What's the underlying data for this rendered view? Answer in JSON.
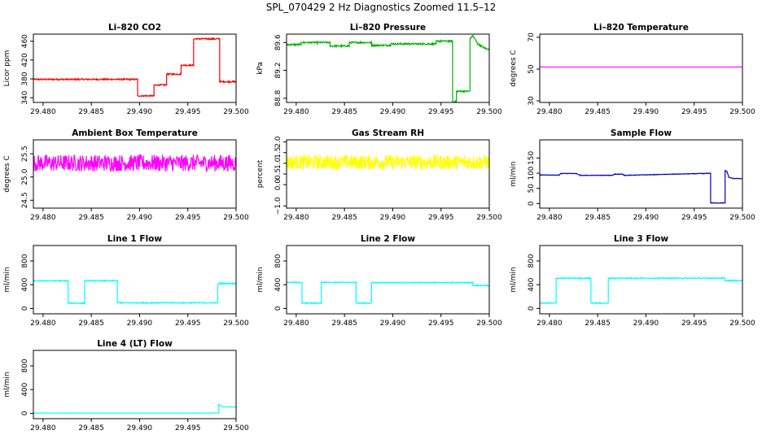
{
  "figure": {
    "title": "SPL_070429  2 Hz Diagnostics Zoomed 11.5–12"
  },
  "chart_data": [
    {
      "type": "line",
      "title": "Li–820 CO2",
      "ylabel": "Licor ppm",
      "color": "#ff0000",
      "xlim": [
        29.479,
        29.5
      ],
      "ylim": [
        330,
        475
      ],
      "xticks": [
        "29.480",
        "29.485",
        "29.490",
        "29.495",
        "29.500"
      ],
      "yticks": [
        340,
        380,
        420,
        460
      ],
      "noise": 1.5,
      "x": [
        29.479,
        29.4898,
        29.4898,
        29.4915,
        29.4915,
        29.4928,
        29.4928,
        29.4943,
        29.4943,
        29.4956,
        29.4956,
        29.4983,
        29.4983,
        29.5
      ],
      "y": [
        379,
        379,
        344,
        344,
        367,
        367,
        390,
        390,
        409,
        409,
        465,
        465,
        374,
        374
      ]
    },
    {
      "type": "line",
      "title": "Li–820 Pressure",
      "ylabel": "kPa",
      "color": "#00b400",
      "xlim": [
        29.479,
        29.5
      ],
      "ylim": [
        88.74,
        89.72
      ],
      "xticks": [
        "29.480",
        "29.485",
        "29.490",
        "29.495",
        "29.500"
      ],
      "yticks": [
        "88.8",
        "89.2",
        "89.6"
      ],
      "noise": 0.012,
      "x": [
        29.479,
        29.4805,
        29.4805,
        29.4835,
        29.4835,
        29.4855,
        29.4855,
        29.4878,
        29.4878,
        29.4898,
        29.4898,
        29.4945,
        29.4945,
        29.4962,
        29.4962,
        29.4966,
        29.4966,
        29.498,
        29.498,
        29.4983,
        29.4988,
        29.4995,
        29.5
      ],
      "y": [
        89.57,
        89.57,
        89.6,
        89.6,
        89.55,
        89.55,
        89.6,
        89.6,
        89.56,
        89.56,
        89.58,
        89.58,
        89.62,
        89.62,
        88.75,
        88.75,
        88.9,
        88.9,
        89.65,
        89.7,
        89.58,
        89.52,
        89.5
      ]
    },
    {
      "type": "line",
      "title": "Li–820 Temperature",
      "ylabel": "degrees C",
      "color": "#ff00ff",
      "xlim": [
        29.479,
        29.5
      ],
      "ylim": [
        29,
        72
      ],
      "xticks": [
        "29.480",
        "29.485",
        "29.490",
        "29.495",
        "29.500"
      ],
      "yticks": [
        30,
        50,
        70
      ],
      "noise": 0,
      "x": [
        29.479,
        29.5
      ],
      "y": [
        51.3,
        51.3
      ]
    },
    {
      "type": "line",
      "title": "Ambient Box Temperature",
      "ylabel": "degrees C",
      "color": "#ff00ff",
      "xlim": [
        29.479,
        29.5
      ],
      "ylim": [
        24.33,
        25.8
      ],
      "xticks": [
        "29.480",
        "29.485",
        "29.490",
        "29.495",
        "29.500"
      ],
      "yticks": [
        "24.5",
        "25.0",
        "25.5"
      ],
      "noise": 0.18,
      "x": [
        29.479,
        29.5
      ],
      "y": [
        25.3,
        25.3
      ]
    },
    {
      "type": "line",
      "title": "Gas Stream RH",
      "ylabel": "percent",
      "color": "#ffff00",
      "xlim": [
        29.479,
        29.5
      ],
      "ylim": [
        -1.1,
        2.1
      ],
      "xticks": [
        "29.480",
        "29.485",
        "29.490",
        "29.495",
        "29.500"
      ],
      "yticks": [
        "−1.0",
        "0.0",
        "0.5",
        "1.0",
        "1.5",
        "2.0"
      ],
      "noise": 0.35,
      "x": [
        29.479,
        29.5
      ],
      "y": [
        1.05,
        1.05
      ]
    },
    {
      "type": "line",
      "title": "Sample Flow",
      "ylabel": "ml/min",
      "color": "#0000c8",
      "xlim": [
        29.479,
        29.5
      ],
      "ylim": [
        -15,
        210
      ],
      "xticks": [
        "29.480",
        "29.485",
        "29.490",
        "29.495",
        "29.500"
      ],
      "yticks": [
        0,
        50,
        100,
        150
      ],
      "noise": 0.8,
      "x": [
        29.479,
        29.481,
        29.4812,
        29.4828,
        29.4832,
        29.4865,
        29.4868,
        29.4875,
        29.4878,
        29.4958,
        29.496,
        29.4967,
        29.4967,
        29.4982,
        29.4982,
        29.4984,
        29.4986,
        29.499,
        29.5
      ],
      "y": [
        94,
        94,
        99,
        99,
        93,
        93,
        97,
        97,
        93,
        99,
        99,
        100,
        2,
        2,
        110,
        105,
        86,
        83,
        82
      ]
    },
    {
      "type": "line",
      "title": "Line 1 Flow",
      "ylabel": "ml/min",
      "color": "#00ffff",
      "xlim": [
        29.479,
        29.5
      ],
      "ylim": [
        -90,
        1060
      ],
      "xticks": [
        "29.480",
        "29.485",
        "29.490",
        "29.495",
        "29.500"
      ],
      "yticks": [
        0,
        400,
        800
      ],
      "noise": 8,
      "x": [
        29.479,
        29.4826,
        29.4826,
        29.4843,
        29.4843,
        29.4877,
        29.4877,
        29.4981,
        29.4981,
        29.4983,
        29.5
      ],
      "y": [
        465,
        465,
        90,
        90,
        465,
        465,
        95,
        95,
        400,
        420,
        420
      ]
    },
    {
      "type": "line",
      "title": "Line 2 Flow",
      "ylabel": "ml/min",
      "color": "#00ffff",
      "xlim": [
        29.479,
        29.5
      ],
      "ylim": [
        -90,
        1060
      ],
      "xticks": [
        "29.480",
        "29.485",
        "29.490",
        "29.495",
        "29.500"
      ],
      "yticks": [
        0,
        400,
        800
      ],
      "noise": 8,
      "x": [
        29.479,
        29.4806,
        29.4806,
        29.4826,
        29.4826,
        29.4862,
        29.4862,
        29.4878,
        29.4878,
        29.4983,
        29.4983,
        29.5
      ],
      "y": [
        440,
        440,
        90,
        90,
        440,
        440,
        90,
        90,
        435,
        435,
        385,
        385
      ]
    },
    {
      "type": "line",
      "title": "Line 3 Flow",
      "ylabel": "ml/min",
      "color": "#00ffff",
      "xlim": [
        29.479,
        29.5
      ],
      "ylim": [
        -90,
        1060
      ],
      "xticks": [
        "29.480",
        "29.485",
        "29.490",
        "29.495",
        "29.500"
      ],
      "yticks": [
        0,
        400,
        800
      ],
      "noise": 8,
      "x": [
        29.479,
        29.4807,
        29.4807,
        29.4843,
        29.4843,
        29.4861,
        29.4861,
        29.4982,
        29.4982,
        29.5
      ],
      "y": [
        90,
        90,
        510,
        510,
        90,
        90,
        510,
        510,
        470,
        470
      ]
    },
    {
      "type": "line",
      "title": "Line 4 (LT) Flow",
      "ylabel": "ml/min",
      "color": "#00ffff",
      "xlim": [
        29.479,
        29.5
      ],
      "ylim": [
        -90,
        1060
      ],
      "xticks": [
        "29.480",
        "29.485",
        "29.490",
        "29.495",
        "29.500"
      ],
      "yticks": [
        0,
        400,
        800
      ],
      "noise": 2,
      "x": [
        29.479,
        29.4982,
        29.4982,
        29.4986,
        29.5
      ],
      "y": [
        5,
        5,
        150,
        110,
        105
      ]
    }
  ]
}
